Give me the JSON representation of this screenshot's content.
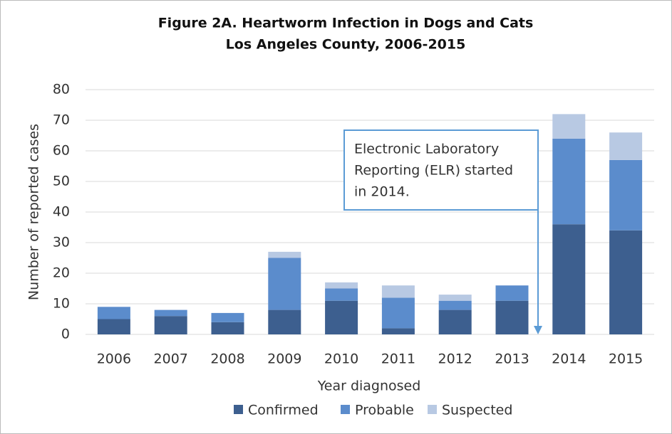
{
  "chart_data": {
    "type": "stacked_bar",
    "title": "Figure 2A. Heartworm Infection in Dogs and Cats",
    "subtitle": "Los Angeles County, 2006-2015",
    "x_label": "Year diagnosed",
    "y_label": "Number of reported cases",
    "categories": [
      "2006",
      "2007",
      "2008",
      "2009",
      "2010",
      "2011",
      "2012",
      "2013",
      "2014",
      "2015"
    ],
    "series": [
      {
        "name": "Confirmed",
        "color": "#3d5f8f",
        "values": [
          5,
          6,
          4,
          8,
          11,
          2,
          8,
          11,
          36,
          34
        ]
      },
      {
        "name": "Probable",
        "color": "#5b8ccc",
        "values": [
          4,
          2,
          3,
          17,
          4,
          10,
          3,
          5,
          28,
          23
        ]
      },
      {
        "name": "Suspected",
        "color": "#b8c9e3",
        "values": [
          0,
          0,
          0,
          2,
          2,
          4,
          2,
          0,
          8,
          9
        ]
      }
    ],
    "ylim": [
      0,
      80
    ],
    "yticks": [
      0,
      10,
      20,
      30,
      40,
      50,
      60,
      70,
      80
    ],
    "grid": true,
    "legend": "bottom",
    "annotation": [
      "Electronic Laboratory",
      "Reporting (ELR) started",
      "in 2014."
    ]
  }
}
